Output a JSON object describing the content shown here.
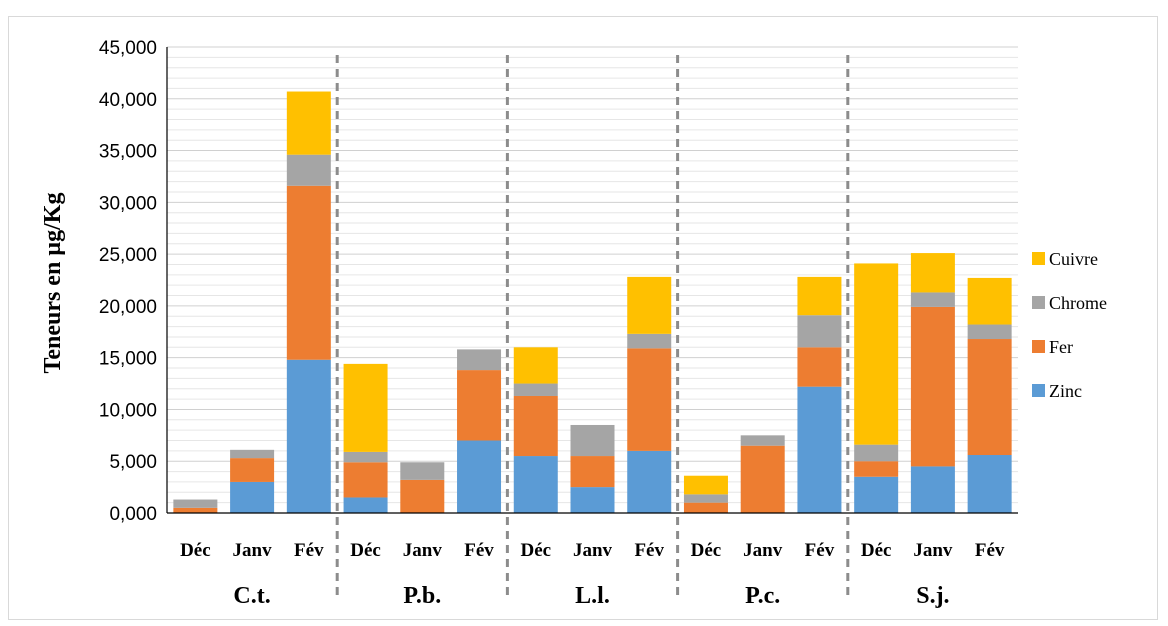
{
  "chart_data": {
    "type": "bar",
    "stacked": true,
    "ylabel": "Teneurs en µg/Kg",
    "ylim": [
      0,
      45000
    ],
    "yticks": [
      "0,000",
      "5,000",
      "10,000",
      "15,000",
      "20,000",
      "25,000",
      "30,000",
      "35,000",
      "40,000",
      "45,000"
    ],
    "grid": true,
    "legend_position": "right",
    "groups": [
      "C.t.",
      "P.b.",
      "L.l.",
      "P.c.",
      "S.j."
    ],
    "months": [
      "Déc",
      "Janv",
      "Fév"
    ],
    "series": [
      {
        "name": "Zinc",
        "color": "#5B9BD5",
        "values": [
          [
            0,
            3000,
            14800
          ],
          [
            1500,
            0,
            7000
          ],
          [
            5500,
            2500,
            6000
          ],
          [
            0,
            0,
            12200
          ],
          [
            3500,
            4500,
            5600
          ]
        ]
      },
      {
        "name": "Fer",
        "color": "#ED7D31",
        "values": [
          [
            500,
            2300,
            16800
          ],
          [
            3400,
            3200,
            6800
          ],
          [
            5800,
            3000,
            9900
          ],
          [
            1000,
            6500,
            3800
          ],
          [
            1500,
            15400,
            11200
          ]
        ]
      },
      {
        "name": "Chrome",
        "color": "#A5A5A5",
        "values": [
          [
            800,
            800,
            3000
          ],
          [
            1000,
            1700,
            2000
          ],
          [
            1200,
            3000,
            1400
          ],
          [
            800,
            1000,
            3100
          ],
          [
            1600,
            1400,
            1400
          ]
        ]
      },
      {
        "name": "Cuivre",
        "color": "#FFC000",
        "values": [
          [
            0,
            0,
            6100
          ],
          [
            8500,
            0,
            0
          ],
          [
            3500,
            0,
            5500
          ],
          [
            1800,
            0,
            3700
          ],
          [
            17500,
            3800,
            4500
          ]
        ]
      }
    ]
  }
}
